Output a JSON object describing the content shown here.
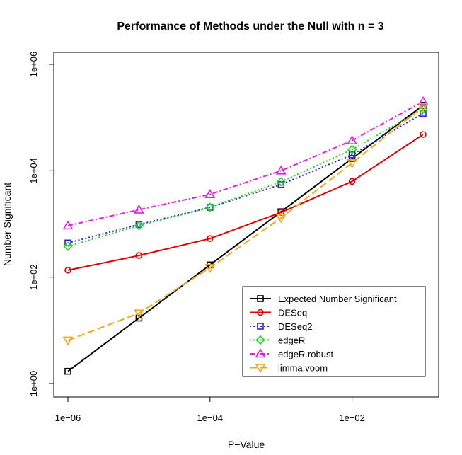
{
  "chart_data": {
    "type": "line",
    "title": "Performance of Methods under the Null with n =  3",
    "xlabel": "P−Value",
    "ylabel": "Number Significant",
    "x_scale": "log",
    "y_scale": "log",
    "xlim": [
      1e-06,
      0.1
    ],
    "ylim": [
      1,
      1000000
    ],
    "x_ticks": [
      {
        "value": 1e-06,
        "label": "1e−06"
      },
      {
        "value": 0.0001,
        "label": "1e−04"
      },
      {
        "value": 0.01,
        "label": "1e−02"
      }
    ],
    "y_ticks": [
      {
        "value": 1,
        "label": "1e+00"
      },
      {
        "value": 100,
        "label": "1e+02"
      },
      {
        "value": 10000,
        "label": "1e+04"
      },
      {
        "value": 1000000,
        "label": "1e+06"
      }
    ],
    "x": [
      1e-06,
      1e-05,
      0.0001,
      0.001,
      0.01,
      0.1
    ],
    "legend_position": "bottom-right",
    "series": [
      {
        "name": "Expected Number Significant",
        "values": [
          1.7,
          17,
          170,
          1700,
          17000,
          170000
        ],
        "color": "#000000",
        "dash": "solid",
        "marker": "square"
      },
      {
        "name": "DESeq",
        "values": [
          135,
          255,
          530,
          1650,
          6300,
          48000
        ],
        "color": "#df0000",
        "dash": "solid",
        "marker": "circle"
      },
      {
        "name": "DESeq2",
        "values": [
          440,
          980,
          2050,
          5500,
          20000,
          120000
        ],
        "color": "#2e1fe0",
        "dash": "dotted",
        "marker": "square"
      },
      {
        "name": "edgeR",
        "values": [
          380,
          930,
          2050,
          6200,
          25000,
          145000
        ],
        "color": "#1ed81e",
        "dash": "dotted",
        "marker": "diamond"
      },
      {
        "name": "edgeR.robust",
        "values": [
          930,
          1850,
          3600,
          10000,
          37000,
          200000
        ],
        "color": "#e51ee5",
        "dash": "dashdot",
        "marker": "triangle-up"
      },
      {
        "name": "limma.voom",
        "values": [
          6.5,
          21,
          150,
          1300,
          14000,
          160000
        ],
        "color": "#f0a81a",
        "dash": "longdash",
        "marker": "triangle-down"
      }
    ]
  }
}
